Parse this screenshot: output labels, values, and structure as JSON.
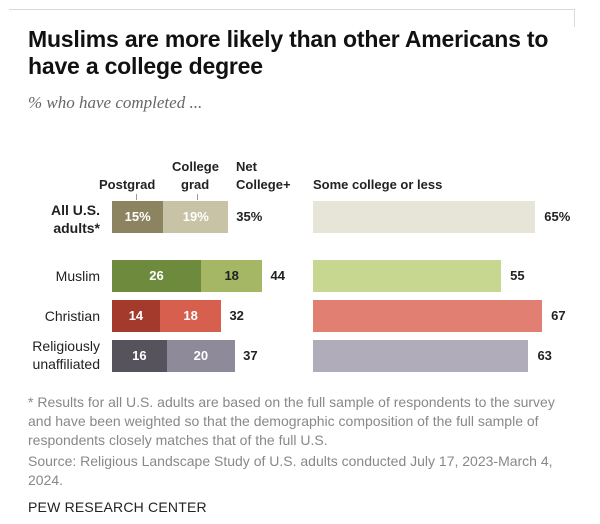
{
  "title": "Muslims are more likely than other Americans to have a college degree",
  "subtitle": "% who have completed ...",
  "chart_data": {
    "type": "bar",
    "orientation": "horizontal",
    "stacked": true,
    "categories": [
      "All U.S. adults*",
      "Muslim",
      "Christian",
      "Religiously unaffiliated"
    ],
    "series": [
      {
        "name": "Postgrad",
        "values": [
          15,
          26,
          14,
          16
        ]
      },
      {
        "name": "College grad",
        "values": [
          19,
          18,
          18,
          20
        ]
      }
    ],
    "net_label": "Net College+",
    "net_values": [
      35,
      44,
      32,
      37
    ],
    "second_panel": {
      "name": "Some college or less",
      "values": [
        65,
        55,
        67,
        63
      ]
    },
    "value_formats": {
      "all_row_suffix": "%"
    },
    "colors": {
      "postgrad": [
        "#8c8461",
        "#6e8a3c",
        "#a33a2c",
        "#56535d"
      ],
      "collegegrad": [
        "#c8c2a6",
        "#a5b664",
        "#d6604d",
        "#8f8a99"
      ],
      "some_college": [
        "#e7e5d8",
        "#c8d78f",
        "#e17f72",
        "#b0acb9"
      ],
      "postgrad_text": [
        "#ffffff",
        "#ffffff",
        "#ffffff",
        "#ffffff"
      ],
      "collegegrad_text": [
        "#ffffff",
        "#222222",
        "#ffffff",
        "#ffffff"
      ]
    }
  },
  "headers": {
    "postgrad": "Postgrad",
    "college_grad_line1": "College",
    "college_grad_line2": "grad",
    "net_line1": "Net",
    "net_line2": "College+",
    "some_college": "Some college or less"
  },
  "row_labels": {
    "all_line1": "All U.S.",
    "all_line2": "adults*",
    "muslim": "Muslim",
    "christian": "Christian",
    "unaffiliated_line1": "Religiously",
    "unaffiliated_line2": "unaffiliated"
  },
  "note": "* Results for all U.S. adults are based on the full sample of respondents to the survey and have been weighted so that the demographic composition of the full sample of respondents closely matches that of the full U.S.",
  "source": "Source: Religious Landscape Study of U.S. adults conducted July 17, 2023-March 4, 2024.",
  "org": "PEW RESEARCH CENTER"
}
